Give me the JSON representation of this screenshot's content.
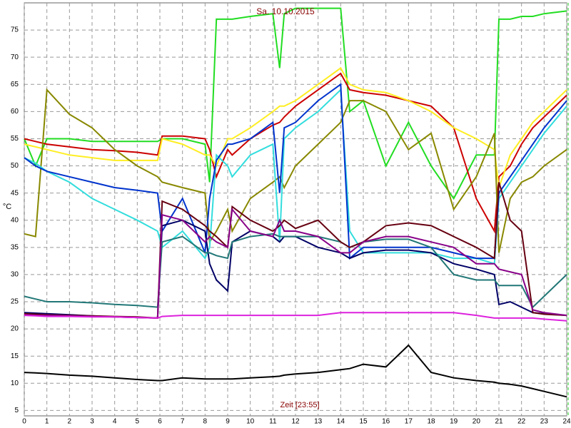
{
  "chart_data": {
    "type": "line",
    "title": "Sa. 10.10.2015",
    "x_label": "Zeit [23:55]",
    "y_label": "°C",
    "x": [
      0,
      0.5,
      1,
      2,
      3,
      4,
      5,
      5.9,
      6.1,
      7,
      8,
      8.2,
      8.5,
      9,
      9.2,
      10,
      11,
      11.3,
      11.5,
      12,
      13,
      14,
      14.4,
      15,
      16,
      17,
      18,
      19,
      20,
      20.8,
      21,
      21.5,
      22,
      22.5,
      23,
      24
    ],
    "xlim": [
      0,
      24
    ],
    "xticks": [
      0,
      1,
      2,
      3,
      4,
      5,
      6,
      7,
      8,
      9,
      10,
      11,
      12,
      13,
      14,
      15,
      16,
      17,
      18,
      19,
      20,
      21,
      22,
      23,
      24
    ],
    "ylim": [
      4,
      80
    ],
    "yticks": [
      5,
      10,
      15,
      20,
      25,
      30,
      35,
      40,
      45,
      50,
      55,
      60,
      65,
      70,
      75
    ],
    "grid": true,
    "series": [
      {
        "color": "#22dd22",
        "values": [
          55,
          50,
          55,
          55,
          54.5,
          54.5,
          54.5,
          54.5,
          55,
          55,
          54,
          47,
          77,
          77,
          77,
          77.5,
          78,
          68,
          78,
          79,
          79,
          79,
          60,
          62,
          50,
          58,
          50,
          44,
          52,
          52,
          77,
          77,
          77.5,
          77.5,
          78,
          78.5
        ]
      },
      {
        "color": "#cc0000",
        "values": [
          55,
          54.5,
          54,
          53.5,
          53,
          52.8,
          52.5,
          52,
          55.5,
          55.5,
          55,
          53,
          48,
          53,
          52,
          55,
          57.5,
          58,
          59,
          61,
          64,
          67,
          64,
          63.5,
          63,
          62,
          61,
          57,
          44,
          38,
          48,
          50,
          54,
          57,
          59,
          63
        ]
      },
      {
        "color": "#ffee22",
        "values": [
          54,
          53.5,
          53,
          52,
          51.5,
          51,
          51,
          51,
          55,
          54,
          52,
          52,
          50,
          55,
          55,
          57,
          60,
          61,
          61,
          62,
          65,
          68,
          65,
          64,
          63.5,
          62,
          60,
          57,
          55,
          53,
          46,
          52,
          55,
          58,
          60,
          64
        ]
      },
      {
        "color": "#888800",
        "values": [
          37.5,
          37,
          64,
          59.5,
          57,
          53,
          50,
          48,
          47,
          46,
          45,
          36,
          38,
          42,
          38,
          44,
          47,
          48,
          46,
          50,
          54,
          58,
          62,
          62,
          60,
          53,
          56,
          42,
          48,
          56,
          34,
          44,
          47,
          48,
          50,
          53
        ]
      },
      {
        "color": "#33dddd",
        "values": [
          51.5,
          50.5,
          49,
          47,
          44,
          42,
          40,
          38,
          35,
          38,
          33,
          35,
          52,
          50,
          48,
          52,
          54,
          36,
          55,
          57,
          60,
          64,
          38,
          34,
          34,
          34,
          34,
          33,
          33,
          32,
          44,
          47,
          50,
          53,
          56,
          61
        ]
      },
      {
        "color": "#0033cc",
        "values": [
          51.5,
          50,
          49,
          48,
          47,
          46,
          45.5,
          45,
          38,
          44,
          34,
          44,
          51,
          54,
          54,
          55,
          58,
          45,
          57,
          58,
          62,
          65,
          33,
          35,
          35,
          35,
          35,
          34,
          33,
          33,
          45,
          48,
          51,
          54,
          57,
          62
        ]
      },
      {
        "color": "#000066",
        "values": [
          23,
          22.9,
          22.8,
          22.6,
          22.4,
          22.2,
          22.1,
          22,
          39,
          40,
          38,
          32,
          29,
          27,
          36,
          38,
          37,
          36,
          37,
          37,
          35,
          34,
          33,
          34,
          34.5,
          34.5,
          34,
          32,
          31,
          30,
          24.5,
          25,
          24,
          23,
          22.8,
          22.5
        ]
      },
      {
        "color": "#227777",
        "values": [
          26,
          25.5,
          25,
          25,
          24.8,
          24.5,
          24.3,
          24,
          36,
          37,
          34,
          34,
          33.5,
          33,
          36,
          37,
          37.5,
          37,
          37,
          37,
          37,
          36,
          35,
          36,
          36.5,
          36.5,
          35,
          30,
          29,
          29,
          28,
          28,
          28,
          24,
          26,
          30
        ]
      },
      {
        "color": "#660011",
        "values": [
          22.8,
          22.7,
          22.6,
          22.5,
          22.4,
          22.3,
          22.2,
          22,
          43.5,
          42,
          39,
          38,
          37,
          35,
          42.5,
          40,
          38,
          39,
          40,
          38.5,
          40,
          36,
          35,
          36,
          39,
          39.5,
          39,
          37,
          35,
          33,
          47,
          40,
          38,
          23,
          22.7,
          22.5
        ]
      },
      {
        "color": "#880088",
        "values": [
          22.6,
          22.5,
          22.5,
          22.4,
          22.3,
          22.2,
          22.1,
          22,
          41,
          40,
          36,
          37,
          36,
          35,
          42,
          38,
          37,
          40,
          38,
          38,
          37,
          34,
          34,
          36,
          37,
          37,
          36,
          35,
          32,
          32,
          31,
          30.5,
          30,
          23.5,
          23,
          22.5
        ]
      },
      {
        "color": "#dd22dd",
        "values": [
          22.5,
          22.4,
          22.3,
          22.3,
          22.2,
          22.2,
          22.1,
          22,
          22.3,
          22.5,
          22.5,
          22.5,
          22.5,
          22.5,
          22.5,
          22.5,
          22.5,
          22.5,
          22.5,
          22.5,
          22.5,
          23,
          23,
          23,
          23,
          23,
          23,
          23,
          22.5,
          22,
          22,
          22,
          22,
          22,
          21.8,
          21.5
        ]
      },
      {
        "color": "#000000",
        "values": [
          12,
          11.9,
          11.8,
          11.5,
          11.3,
          11,
          10.7,
          10.5,
          10.5,
          11,
          10.8,
          10.8,
          10.8,
          10.8,
          10.8,
          11,
          11.2,
          11.3,
          11.5,
          11.7,
          12,
          12.5,
          12.7,
          13.5,
          13,
          17,
          12,
          11,
          10.5,
          10.2,
          10,
          9.8,
          9.5,
          9,
          8.5,
          7.5
        ]
      }
    ]
  }
}
